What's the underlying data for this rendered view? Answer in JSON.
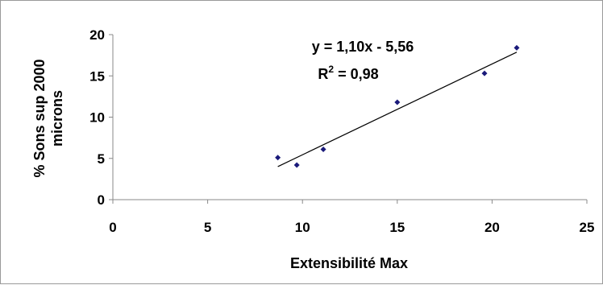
{
  "chart_data": {
    "type": "scatter",
    "xlabel": "Extensibilité Max",
    "ylabel_line1": "% Sons sup 2000",
    "ylabel_line2": "microns",
    "xlim": [
      0,
      25
    ],
    "ylim": [
      0,
      20
    ],
    "x_ticks": [
      0,
      5,
      10,
      15,
      20,
      25
    ],
    "y_ticks": [
      0,
      5,
      10,
      15,
      20
    ],
    "x_tick_labels": [
      "0",
      "5",
      "10",
      "15",
      "20",
      "25"
    ],
    "y_tick_labels": [
      "0",
      "5",
      "10",
      "15",
      "20"
    ],
    "grid": false,
    "legend": "none",
    "marker_color": "#1a1a7a",
    "points": [
      {
        "x": 8.7,
        "y": 5.1
      },
      {
        "x": 9.7,
        "y": 4.2
      },
      {
        "x": 11.1,
        "y": 6.1
      },
      {
        "x": 15.0,
        "y": 11.8
      },
      {
        "x": 19.6,
        "y": 15.3
      },
      {
        "x": 21.3,
        "y": 18.4
      }
    ],
    "trendline": {
      "slope": 1.1,
      "intercept": -5.56,
      "x_range": [
        8.7,
        21.3
      ],
      "equation_label": "y = 1,10x - 5,56",
      "r2_label_prefix": "R",
      "r2_label_superscript": "2",
      "r2_label_value": " = 0,98"
    }
  }
}
